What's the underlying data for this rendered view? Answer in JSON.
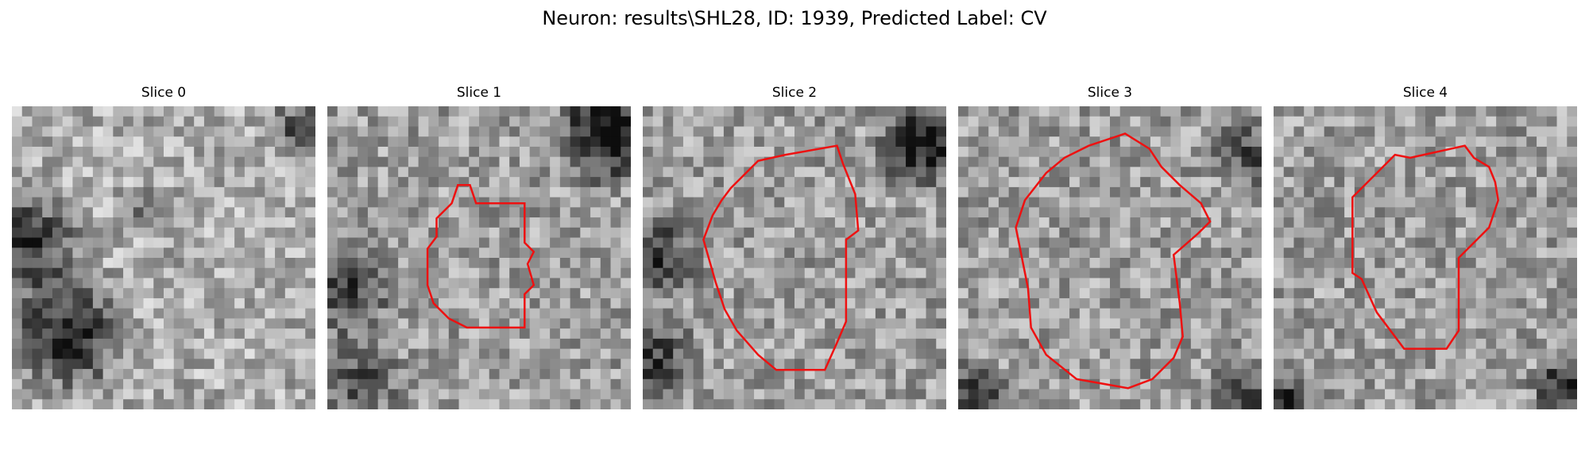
{
  "figure": {
    "title": "Neuron: results\\SHL28, ID: 1939, Predicted Label: CV"
  },
  "panels": [
    {
      "title": "Slice 0",
      "has_contour": false
    },
    {
      "title": "Slice 1",
      "has_contour": true
    },
    {
      "title": "Slice 2",
      "has_contour": true
    },
    {
      "title": "Slice 3",
      "has_contour": true
    },
    {
      "title": "Slice 4",
      "has_contour": true
    }
  ],
  "colors": {
    "contour": "#ee1111",
    "background": "#ffffff"
  }
}
